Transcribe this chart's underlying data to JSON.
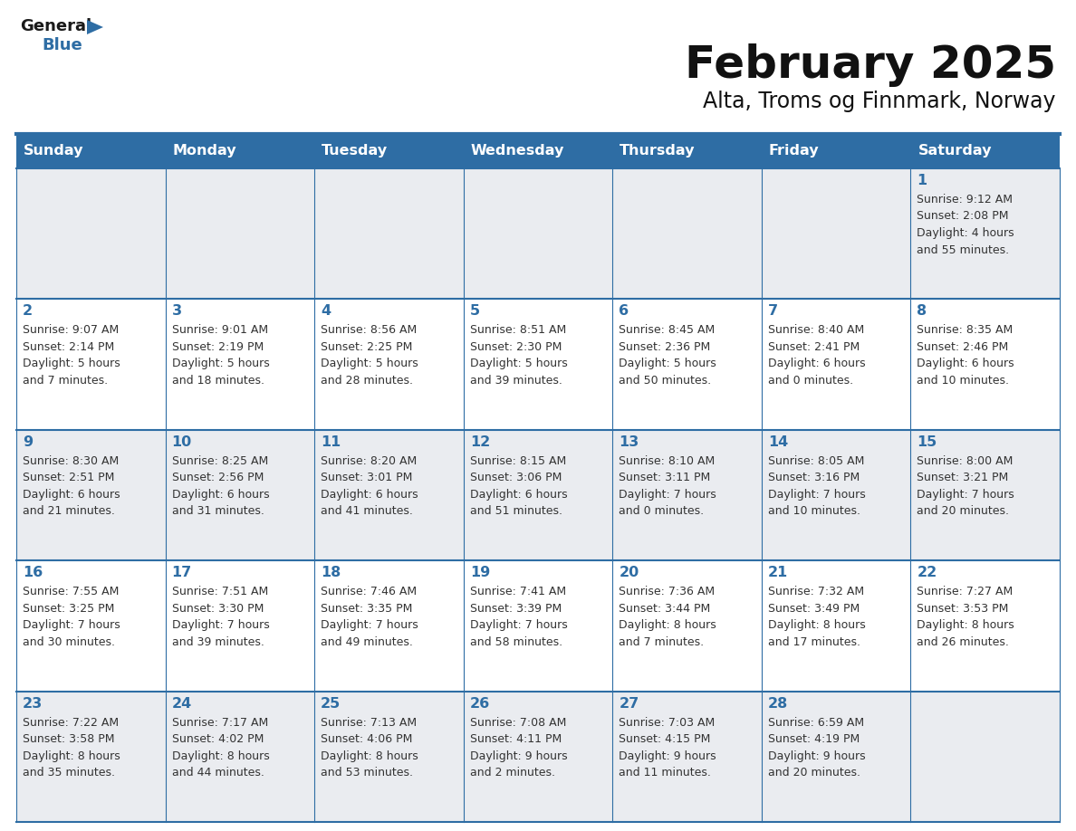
{
  "title": "February 2025",
  "subtitle": "Alta, Troms og Finnmark, Norway",
  "days_of_week": [
    "Sunday",
    "Monday",
    "Tuesday",
    "Wednesday",
    "Thursday",
    "Friday",
    "Saturday"
  ],
  "header_bg": "#2E6DA4",
  "header_text": "#FFFFFF",
  "cell_bg_odd": "#EAECF0",
  "cell_bg_even": "#FFFFFF",
  "text_color": "#333333",
  "day_number_color": "#2E6DA4",
  "line_color": "#2E6DA4",
  "logo_general_color": "#1a1a1a",
  "logo_blue_color": "#2E6DA4",
  "weeks": [
    [
      {
        "day": null,
        "info": null
      },
      {
        "day": null,
        "info": null
      },
      {
        "day": null,
        "info": null
      },
      {
        "day": null,
        "info": null
      },
      {
        "day": null,
        "info": null
      },
      {
        "day": null,
        "info": null
      },
      {
        "day": 1,
        "info": "Sunrise: 9:12 AM\nSunset: 2:08 PM\nDaylight: 4 hours\nand 55 minutes."
      }
    ],
    [
      {
        "day": 2,
        "info": "Sunrise: 9:07 AM\nSunset: 2:14 PM\nDaylight: 5 hours\nand 7 minutes."
      },
      {
        "day": 3,
        "info": "Sunrise: 9:01 AM\nSunset: 2:19 PM\nDaylight: 5 hours\nand 18 minutes."
      },
      {
        "day": 4,
        "info": "Sunrise: 8:56 AM\nSunset: 2:25 PM\nDaylight: 5 hours\nand 28 minutes."
      },
      {
        "day": 5,
        "info": "Sunrise: 8:51 AM\nSunset: 2:30 PM\nDaylight: 5 hours\nand 39 minutes."
      },
      {
        "day": 6,
        "info": "Sunrise: 8:45 AM\nSunset: 2:36 PM\nDaylight: 5 hours\nand 50 minutes."
      },
      {
        "day": 7,
        "info": "Sunrise: 8:40 AM\nSunset: 2:41 PM\nDaylight: 6 hours\nand 0 minutes."
      },
      {
        "day": 8,
        "info": "Sunrise: 8:35 AM\nSunset: 2:46 PM\nDaylight: 6 hours\nand 10 minutes."
      }
    ],
    [
      {
        "day": 9,
        "info": "Sunrise: 8:30 AM\nSunset: 2:51 PM\nDaylight: 6 hours\nand 21 minutes."
      },
      {
        "day": 10,
        "info": "Sunrise: 8:25 AM\nSunset: 2:56 PM\nDaylight: 6 hours\nand 31 minutes."
      },
      {
        "day": 11,
        "info": "Sunrise: 8:20 AM\nSunset: 3:01 PM\nDaylight: 6 hours\nand 41 minutes."
      },
      {
        "day": 12,
        "info": "Sunrise: 8:15 AM\nSunset: 3:06 PM\nDaylight: 6 hours\nand 51 minutes."
      },
      {
        "day": 13,
        "info": "Sunrise: 8:10 AM\nSunset: 3:11 PM\nDaylight: 7 hours\nand 0 minutes."
      },
      {
        "day": 14,
        "info": "Sunrise: 8:05 AM\nSunset: 3:16 PM\nDaylight: 7 hours\nand 10 minutes."
      },
      {
        "day": 15,
        "info": "Sunrise: 8:00 AM\nSunset: 3:21 PM\nDaylight: 7 hours\nand 20 minutes."
      }
    ],
    [
      {
        "day": 16,
        "info": "Sunrise: 7:55 AM\nSunset: 3:25 PM\nDaylight: 7 hours\nand 30 minutes."
      },
      {
        "day": 17,
        "info": "Sunrise: 7:51 AM\nSunset: 3:30 PM\nDaylight: 7 hours\nand 39 minutes."
      },
      {
        "day": 18,
        "info": "Sunrise: 7:46 AM\nSunset: 3:35 PM\nDaylight: 7 hours\nand 49 minutes."
      },
      {
        "day": 19,
        "info": "Sunrise: 7:41 AM\nSunset: 3:39 PM\nDaylight: 7 hours\nand 58 minutes."
      },
      {
        "day": 20,
        "info": "Sunrise: 7:36 AM\nSunset: 3:44 PM\nDaylight: 8 hours\nand 7 minutes."
      },
      {
        "day": 21,
        "info": "Sunrise: 7:32 AM\nSunset: 3:49 PM\nDaylight: 8 hours\nand 17 minutes."
      },
      {
        "day": 22,
        "info": "Sunrise: 7:27 AM\nSunset: 3:53 PM\nDaylight: 8 hours\nand 26 minutes."
      }
    ],
    [
      {
        "day": 23,
        "info": "Sunrise: 7:22 AM\nSunset: 3:58 PM\nDaylight: 8 hours\nand 35 minutes."
      },
      {
        "day": 24,
        "info": "Sunrise: 7:17 AM\nSunset: 4:02 PM\nDaylight: 8 hours\nand 44 minutes."
      },
      {
        "day": 25,
        "info": "Sunrise: 7:13 AM\nSunset: 4:06 PM\nDaylight: 8 hours\nand 53 minutes."
      },
      {
        "day": 26,
        "info": "Sunrise: 7:08 AM\nSunset: 4:11 PM\nDaylight: 9 hours\nand 2 minutes."
      },
      {
        "day": 27,
        "info": "Sunrise: 7:03 AM\nSunset: 4:15 PM\nDaylight: 9 hours\nand 11 minutes."
      },
      {
        "day": 28,
        "info": "Sunrise: 6:59 AM\nSunset: 4:19 PM\nDaylight: 9 hours\nand 20 minutes."
      },
      {
        "day": null,
        "info": null
      }
    ]
  ]
}
